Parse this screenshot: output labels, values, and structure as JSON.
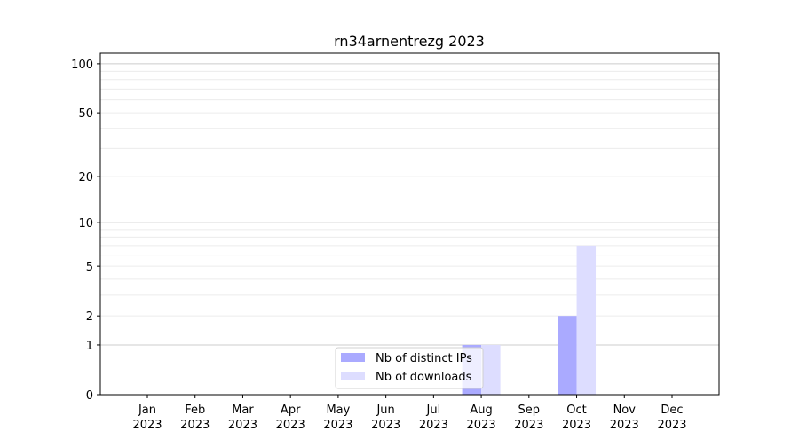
{
  "chart_data": {
    "type": "bar",
    "title": "rn34arnentrezg 2023",
    "xlabel": "",
    "ylabel": "",
    "yscale": "log(1+y)",
    "ylim": [
      0,
      116
    ],
    "yticks": [
      0,
      1,
      2,
      5,
      10,
      20,
      50,
      100
    ],
    "ytick_labels": [
      "0",
      "1",
      "2",
      "5",
      "10",
      "20",
      "50",
      "100"
    ],
    "grid": true,
    "legend_placement": "lower-center",
    "categories": [
      "Jan\n2023",
      "Feb\n2023",
      "Mar\n2023",
      "Apr\n2023",
      "May\n2023",
      "Jun\n2023",
      "Jul\n2023",
      "Aug\n2023",
      "Sep\n2023",
      "Oct\n2023",
      "Nov\n2023",
      "Dec\n2023"
    ],
    "series": [
      {
        "name": "Nb of distinct IPs",
        "color": "#aaaaff",
        "values": [
          0,
          0,
          0,
          0,
          0,
          0,
          0,
          1,
          0,
          2,
          0,
          0
        ]
      },
      {
        "name": "Nb of downloads",
        "color": "#ddddff",
        "values": [
          0,
          0,
          0,
          0,
          0,
          0,
          0,
          1,
          0,
          7,
          0,
          0
        ]
      }
    ]
  }
}
